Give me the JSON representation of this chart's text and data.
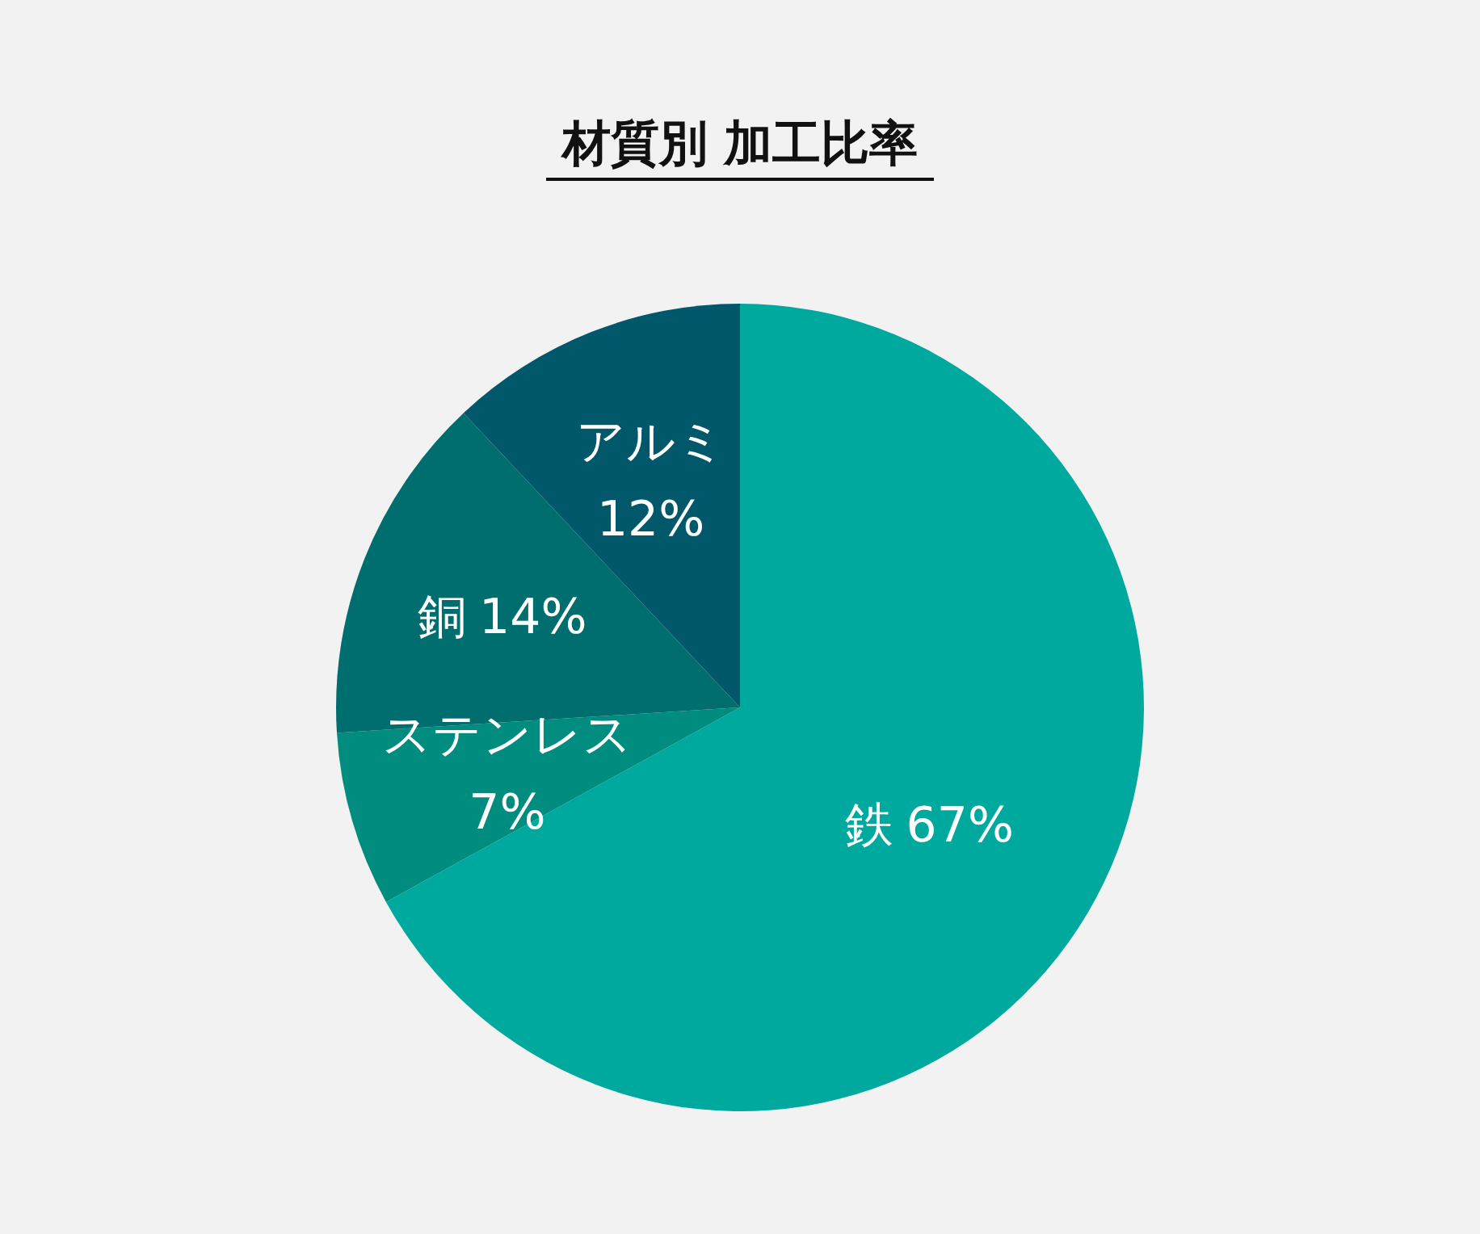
{
  "chart_data": {
    "type": "pie",
    "title": "材質別 加工比率",
    "categories": [
      "鉄",
      "ステンレス",
      "銅",
      "アルミ"
    ],
    "values": [
      67,
      7,
      14,
      12
    ],
    "colors": [
      "#00a99d",
      "#008c7e",
      "#006e6e",
      "#00586a"
    ],
    "value_labels": [
      "67%",
      "7%",
      "14%",
      "12%"
    ]
  }
}
